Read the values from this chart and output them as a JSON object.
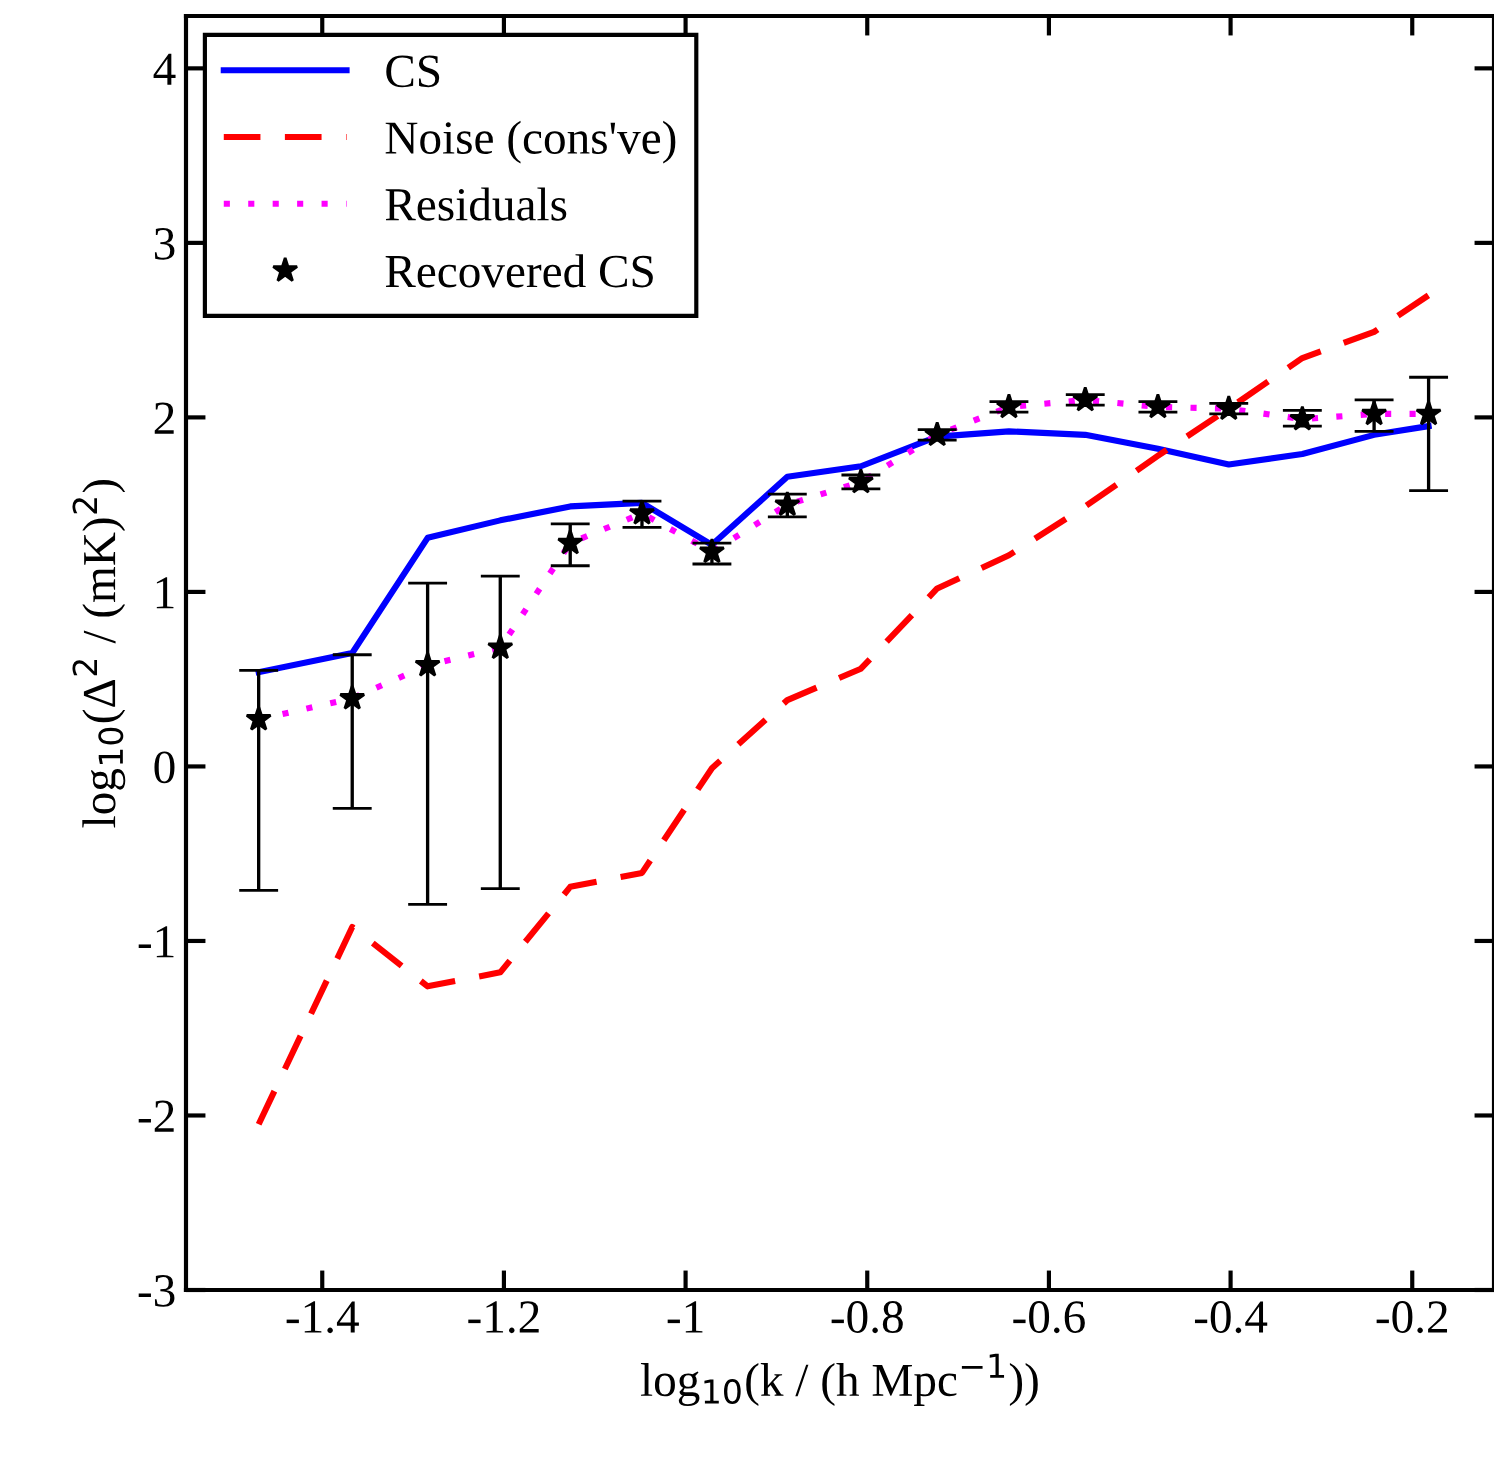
{
  "chart_data": {
    "type": "line",
    "xlabel": "log$_{10}$(k / (h Mpc$^{−1}$))",
    "ylabel": "log$_{10}$(Δ$^{2}$ / (mK)$^{2}$)",
    "x": [
      -1.47,
      -1.367,
      -1.284,
      -1.204,
      -1.127,
      -1.048,
      -0.971,
      -0.888,
      -0.807,
      -0.723,
      -0.644,
      -0.56,
      -0.48,
      -0.402,
      -0.321,
      -0.242,
      -0.182
    ],
    "xlim": [
      -1.55,
      -0.11
    ],
    "xticks": [
      -1.4,
      -1.2,
      -1,
      -0.8,
      -0.6,
      -0.4,
      -0.2
    ],
    "ylim": [
      -3,
      4.3
    ],
    "yticks": [
      -3,
      -2,
      -1,
      0,
      1,
      2,
      3,
      4
    ],
    "grid": false,
    "legend": "top left",
    "series": [
      {
        "name": "CS",
        "color": "#0000ff",
        "line_style": "solid",
        "values": [
          0.54,
          0.65,
          1.31,
          1.41,
          1.49,
          1.51,
          1.27,
          1.66,
          1.72,
          1.89,
          1.92,
          1.9,
          1.82,
          1.73,
          1.79,
          1.9,
          1.95
        ]
      },
      {
        "name": "Noise (cons've)",
        "color": "#ff0000",
        "line_style": "dashed",
        "values": [
          -2.05,
          -0.92,
          -1.26,
          -1.18,
          -0.69,
          -0.61,
          -0.01,
          0.38,
          0.56,
          1.02,
          1.21,
          1.49,
          1.78,
          2.05,
          2.34,
          2.49,
          2.7
        ]
      },
      {
        "name": "Residuals",
        "color": "#ff00ff",
        "line_style": "dotted",
        "values": [
          0.27,
          0.39,
          0.58,
          0.68,
          1.28,
          1.45,
          1.23,
          1.5,
          1.63,
          1.9,
          2.06,
          2.1,
          2.06,
          2.05,
          1.99,
          2.02,
          2.02
        ]
      },
      {
        "name": "Recovered CS",
        "type": "scatter",
        "color": "#000000",
        "marker": "star",
        "values": [
          0.27,
          0.39,
          0.58,
          0.68,
          1.28,
          1.45,
          1.23,
          1.5,
          1.63,
          1.9,
          2.06,
          2.1,
          2.06,
          2.05,
          1.99,
          2.02,
          2.02
        ],
        "errors": [
          [
            -0.71,
            0.55
          ],
          [
            -0.24,
            0.64
          ],
          [
            -0.79,
            1.05
          ],
          [
            -0.7,
            1.09
          ],
          [
            1.15,
            1.39
          ],
          [
            1.37,
            1.52
          ],
          [
            1.16,
            1.28
          ],
          [
            1.43,
            1.56
          ],
          [
            1.59,
            1.67
          ],
          [
            1.87,
            1.93
          ],
          [
            2.03,
            2.09
          ],
          [
            2.07,
            2.13
          ],
          [
            2.03,
            2.09
          ],
          [
            2.02,
            2.08
          ],
          [
            1.95,
            2.04
          ],
          [
            1.92,
            2.1
          ],
          [
            1.58,
            2.23
          ]
        ]
      }
    ]
  }
}
